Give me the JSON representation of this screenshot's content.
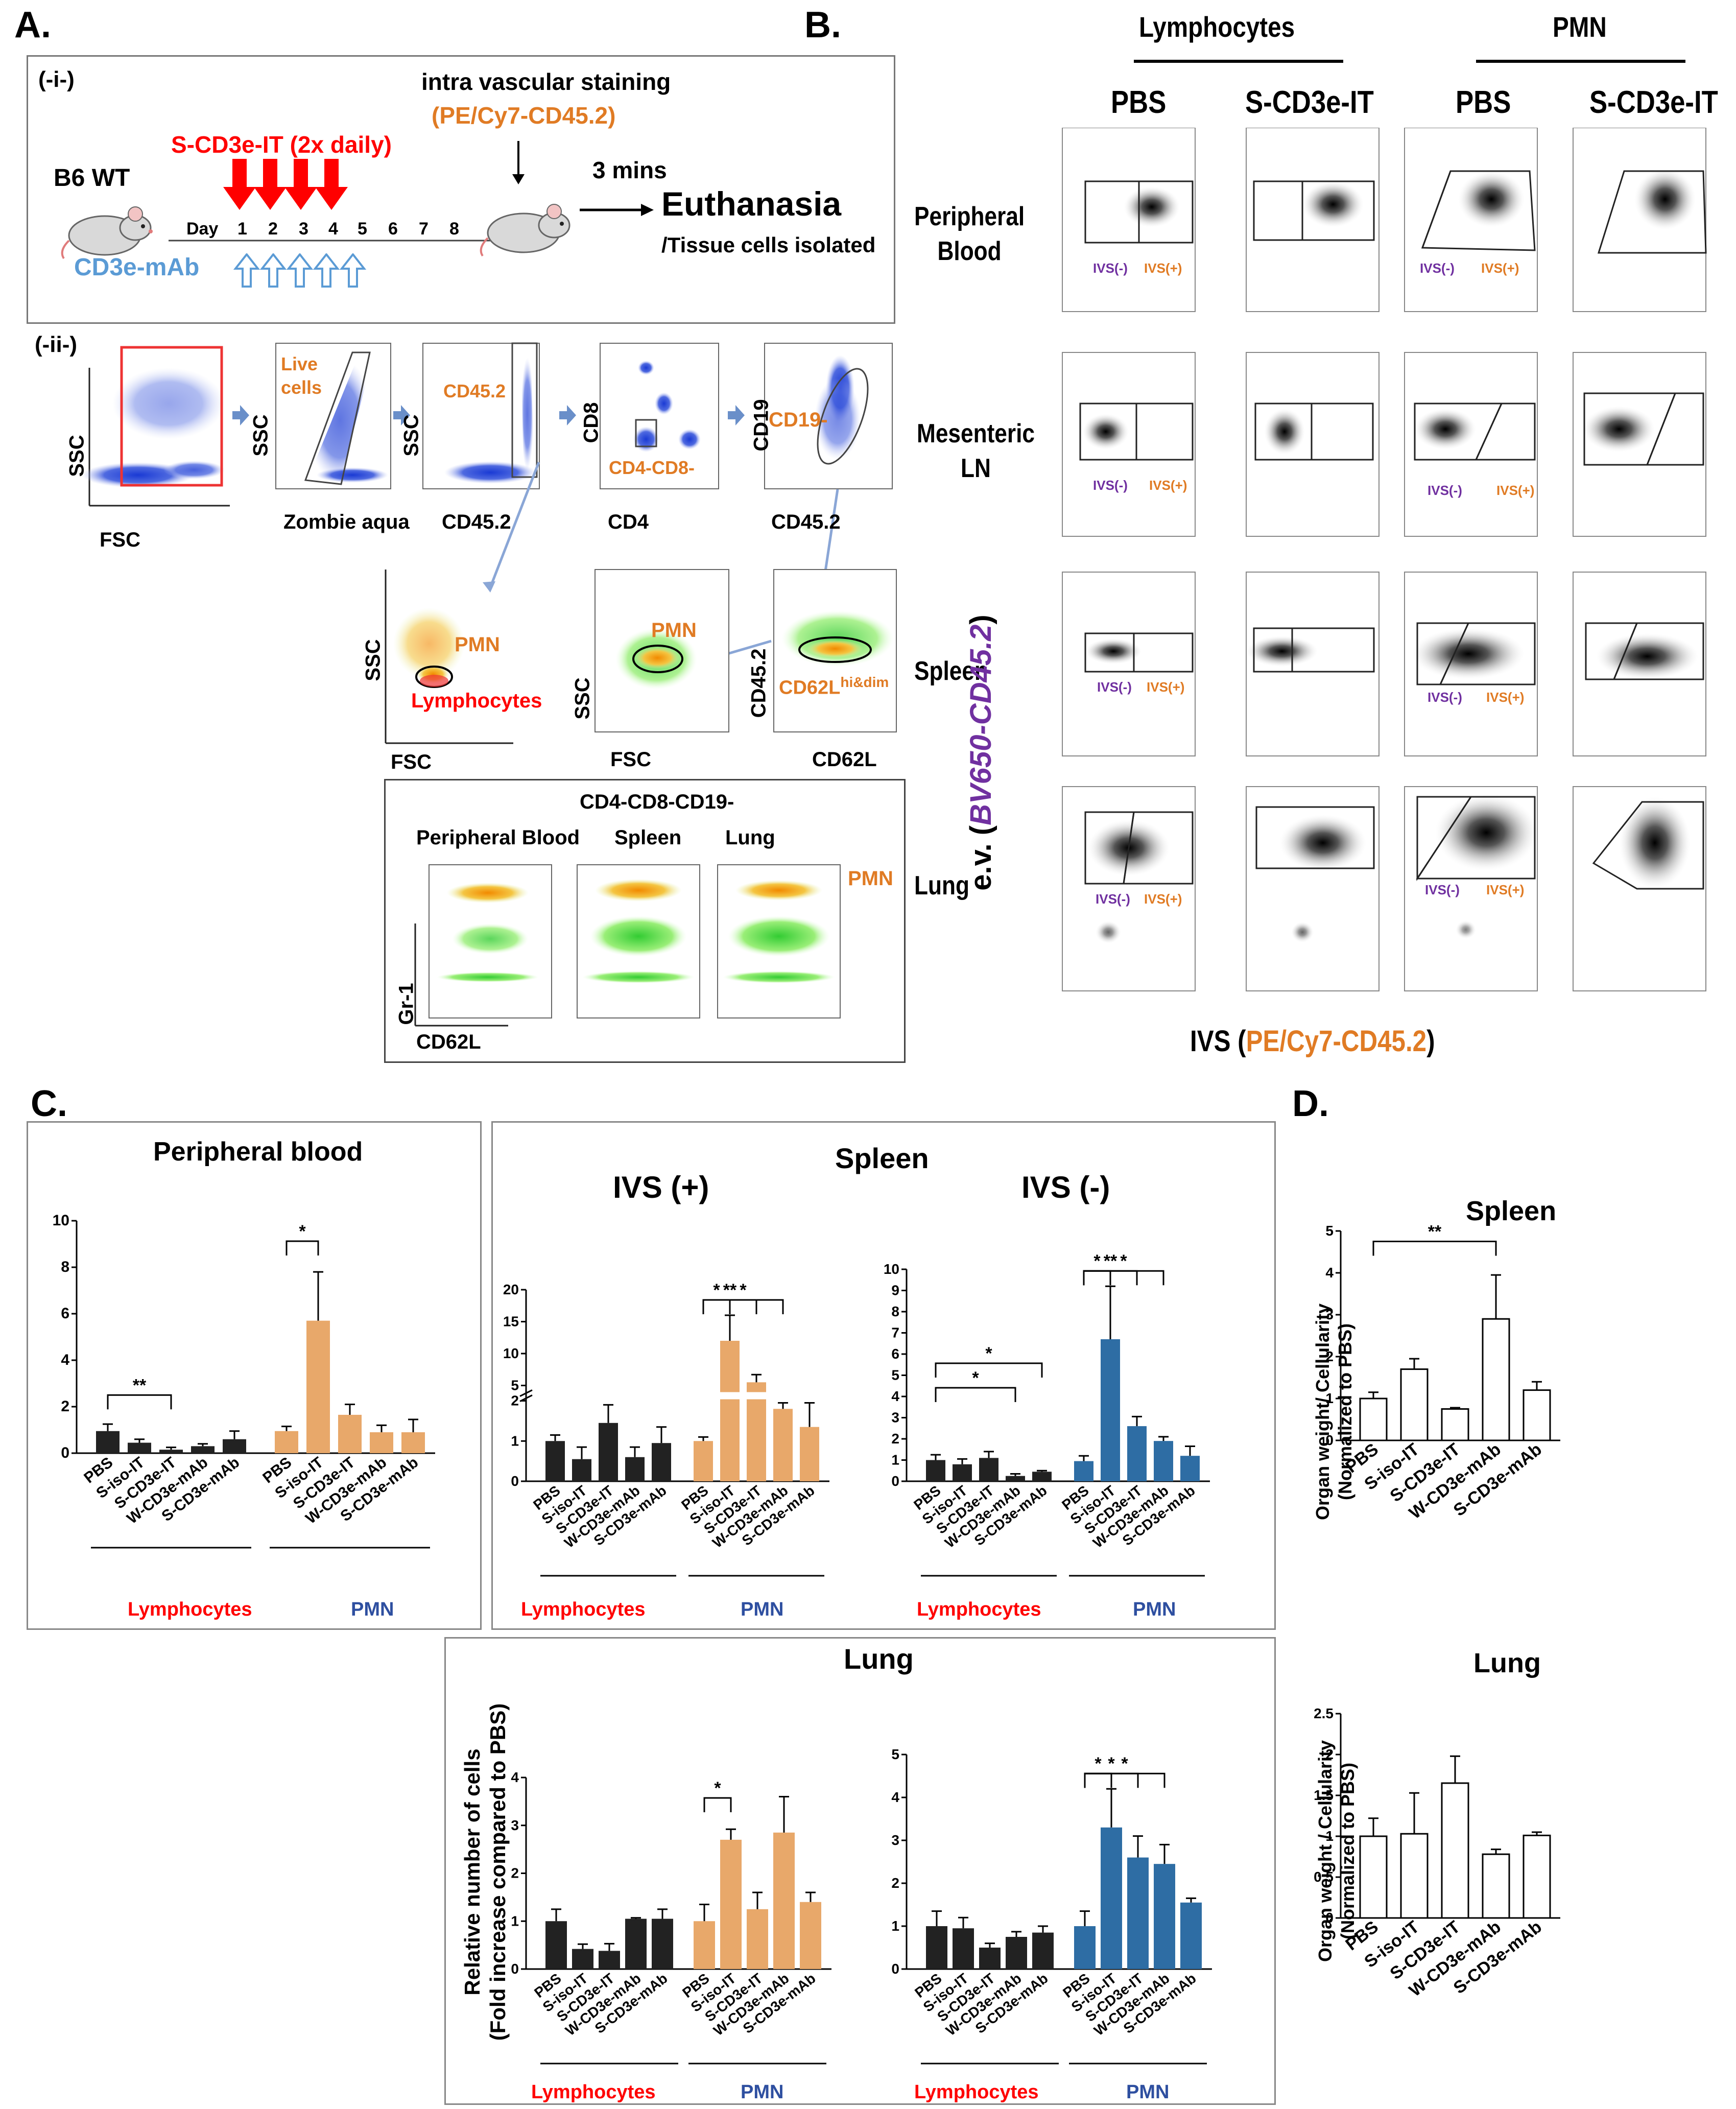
{
  "panels": {
    "A": "A.",
    "B": "B.",
    "C": "C.",
    "D": "D."
  },
  "colors": {
    "red": "#ff0000",
    "orange": "#e07b24",
    "blue": "#5b9bd5",
    "purple": "#7030a0",
    "pmn_bar": "#e8a86a",
    "dark_bar": "#222222",
    "navy_bar": "#2e6da4"
  },
  "panelA": {
    "sub_i": "(-i-)",
    "sub_ii": "(-ii-)",
    "mouse_label": "B6 WT",
    "treatment": "S-CD3e-IT (2x daily)",
    "day_label": "Day",
    "days": [
      "1",
      "2",
      "3",
      "4",
      "5",
      "6",
      "7",
      "8"
    ],
    "mab": "CD3e-mAb",
    "ivs_title": "intra vascular staining",
    "ivs_reagent": "(PE/Cy7-CD45.2)",
    "mins": "3 mins",
    "euthanasia": "Euthanasia",
    "isolated": "/Tissue cells isolated",
    "gating": {
      "p1": {
        "y": "SSC",
        "x": "FSC"
      },
      "p2": {
        "y": "SSC",
        "x": "Zombie aqua",
        "gate": "Live\ncells"
      },
      "p3": {
        "y": "SSC",
        "x": "CD45.2",
        "gate": "CD45.2"
      },
      "p4": {
        "y": "CD8",
        "x": "CD4",
        "gate": "CD4-CD8-"
      },
      "p5": {
        "y": "CD19",
        "x": "CD45.2",
        "gate": "CD19-"
      },
      "p6": {
        "y": "SSC",
        "x": "FSC",
        "gate1": "PMN",
        "gate2": "Lymphocytes"
      },
      "p7": {
        "y": "SSC",
        "x": "FSC",
        "gate": "PMN"
      },
      "p8": {
        "y": "CD45.2",
        "x": "CD62L",
        "gate": "CD62L",
        "gate_sup": "hi&dim"
      }
    },
    "bottom_box": {
      "title": "CD4-CD8-CD19-",
      "cols": [
        "Peripheral Blood",
        "Spleen",
        "Lung"
      ],
      "pmn": "PMN",
      "y": "Gr-1",
      "x": "CD62L"
    }
  },
  "panelB": {
    "groups": [
      "Lymphocytes",
      "PMN"
    ],
    "cols": [
      "PBS",
      "S-CD3e-IT",
      "PBS",
      "S-CD3e-IT"
    ],
    "rows": [
      "Peripheral\nBlood",
      "Mesenteric\nLN",
      "Spleen",
      "Lung"
    ],
    "ivs_neg": "IVS(-)",
    "ivs_pos": "IVS(+)",
    "y_axis_prefix": "e.v. (",
    "y_axis_colored": "BV650-CD45.2",
    "y_axis_suffix": ")",
    "x_axis_prefix": "IVS (",
    "x_axis_colored": "PE/Cy7-CD45.2",
    "x_axis_suffix": ")"
  },
  "panelC": {
    "pb_title": "Peripheral blood",
    "spleen_title": "Spleen",
    "ivs_pos_title": "IVS (+)",
    "ivs_neg_title": "IVS (-)",
    "lung_title": "Lung",
    "y_label_1": "Relative number of cells",
    "y_label_2": "(Fold increase compared to  PBS)",
    "group_lymph": "Lymphocytes",
    "group_pmn": "PMN"
  },
  "panelD": {
    "spleen_title": "Spleen",
    "lung_title": "Lung",
    "y1_a": "Organ weight/ Cellularity",
    "y1_b": "(Normalized to PBS)",
    "y2_a": "Organ weight / Cellularity",
    "y2_b": "(Normalized to PBS)"
  },
  "chart_data": [
    {
      "id": "C_peripheral_blood",
      "type": "bar",
      "title": "Peripheral blood",
      "categories": [
        "PBS",
        "S-iso-IT",
        "S-CD3e-IT",
        "W-CD3e-mAb",
        "S-CD3e-mAb",
        "PBS",
        "S-iso-IT",
        "S-CD3e-IT",
        "W-CD3e-mAb",
        "S-CD3e-mAb"
      ],
      "groups": [
        "Lymphocytes",
        "Lymphocytes",
        "Lymphocytes",
        "Lymphocytes",
        "Lymphocytes",
        "PMN",
        "PMN",
        "PMN",
        "PMN",
        "PMN"
      ],
      "values": [
        0.95,
        0.45,
        0.15,
        0.3,
        0.6,
        0.95,
        5.7,
        1.65,
        0.9,
        0.9
      ],
      "errors": [
        0.3,
        0.15,
        0.1,
        0.1,
        0.35,
        0.2,
        2.1,
        0.45,
        0.3,
        0.55
      ],
      "ylim": [
        0,
        10
      ],
      "yticks": [
        0,
        2,
        4,
        6,
        8,
        10
      ],
      "significance": [
        {
          "from": 0,
          "to": 2,
          "label": "**"
        },
        {
          "from": 5,
          "to": 6,
          "label": "*"
        }
      ]
    },
    {
      "id": "C_spleen_ivs_pos",
      "type": "bar",
      "title": "IVS (+)",
      "categories": [
        "PBS",
        "S-iso-IT",
        "S-CD3e-IT",
        "W-CD3e-mAb",
        "S-CD3e-mAb",
        "PBS",
        "S-iso-IT",
        "S-CD3e-IT",
        "W-CD3e-mAb",
        "S-CD3e-mAb"
      ],
      "values": [
        1.0,
        0.55,
        1.45,
        0.6,
        0.95,
        1.0,
        12.0,
        5.5,
        1.8,
        1.35
      ],
      "errors": [
        0.15,
        0.3,
        0.45,
        0.25,
        0.4,
        0.1,
        4.0,
        1.2,
        0.15,
        0.6
      ],
      "ylim": [
        0,
        20
      ],
      "yticks": [
        0,
        1,
        2,
        5,
        10,
        15,
        20
      ],
      "axis_break": [
        2,
        5
      ],
      "significance": [
        {
          "from": 5,
          "to": 6,
          "label": "*"
        },
        {
          "from": 5,
          "to": 7,
          "label": "**"
        },
        {
          "from": 5,
          "to": 8,
          "label": "*"
        }
      ]
    },
    {
      "id": "C_spleen_ivs_neg",
      "type": "bar",
      "title": "IVS (-)",
      "categories": [
        "PBS",
        "S-iso-IT",
        "S-CD3e-IT",
        "W-CD3e-mAb",
        "S-CD3e-mAb",
        "PBS",
        "S-iso-IT",
        "S-CD3e-IT",
        "W-CD3e-mAb",
        "S-CD3e-mAb"
      ],
      "values": [
        1.0,
        0.8,
        1.1,
        0.25,
        0.45,
        0.95,
        6.7,
        2.6,
        1.9,
        1.2
      ],
      "errors": [
        0.25,
        0.25,
        0.3,
        0.1,
        0.05,
        0.25,
        2.5,
        0.45,
        0.2,
        0.45
      ],
      "ylim": [
        0,
        10
      ],
      "yticks": [
        0,
        1,
        2,
        3,
        4,
        5,
        6,
        7,
        8,
        9,
        10
      ],
      "significance": [
        {
          "from": 0,
          "to": 3,
          "label": "*"
        },
        {
          "from": 0,
          "to": 4,
          "label": "*"
        },
        {
          "from": 5,
          "to": 6,
          "label": "*"
        },
        {
          "from": 5,
          "to": 7,
          "label": "**"
        },
        {
          "from": 5,
          "to": 8,
          "label": "*"
        }
      ]
    },
    {
      "id": "C_lung_left",
      "type": "bar",
      "title": "Lung",
      "categories": [
        "PBS",
        "S-iso-IT",
        "S-CD3e-IT",
        "W-CD3e-mAb",
        "S-CD3e-mAb",
        "PBS",
        "S-iso-IT",
        "S-CD3e-IT",
        "W-CD3e-mAb",
        "S-CD3e-mAb"
      ],
      "values": [
        1.0,
        0.42,
        0.38,
        1.05,
        1.05,
        1.0,
        2.7,
        1.25,
        2.85,
        1.4
      ],
      "errors": [
        0.25,
        0.1,
        0.15,
        0.02,
        0.2,
        0.35,
        0.22,
        0.35,
        0.75,
        0.2
      ],
      "ylim": [
        0,
        4
      ],
      "yticks": [
        0,
        1,
        2,
        3,
        4
      ],
      "significance": [
        {
          "from": 5,
          "to": 6,
          "label": "*"
        }
      ]
    },
    {
      "id": "C_lung_right",
      "type": "bar",
      "categories": [
        "PBS",
        "S-iso-IT",
        "S-CD3e-IT",
        "W-CD3e-mAb",
        "S-CD3e-mAb",
        "PBS",
        "S-iso-IT",
        "S-CD3e-IT",
        "W-CD3e-mAb",
        "S-CD3e-mAb"
      ],
      "values": [
        1.0,
        0.95,
        0.5,
        0.75,
        0.85,
        1.0,
        3.3,
        2.6,
        2.45,
        1.55
      ],
      "errors": [
        0.35,
        0.25,
        0.1,
        0.12,
        0.15,
        0.35,
        0.9,
        0.5,
        0.45,
        0.1
      ],
      "ylim": [
        0,
        5
      ],
      "yticks": [
        0,
        1,
        2,
        3,
        4,
        5
      ],
      "significance": [
        {
          "from": 5,
          "to": 6,
          "label": "*"
        },
        {
          "from": 5,
          "to": 7,
          "label": "*"
        },
        {
          "from": 5,
          "to": 8,
          "label": "*"
        }
      ]
    },
    {
      "id": "D_spleen",
      "type": "bar",
      "title": "Spleen",
      "categories": [
        "PBS",
        "S-iso-IT",
        "S-CD3e-IT",
        "W-CD3e-mAb",
        "S-CD3e-mAb"
      ],
      "values": [
        1.0,
        1.7,
        0.75,
        2.9,
        1.2
      ],
      "errors": [
        0.15,
        0.25,
        0.03,
        1.05,
        0.2
      ],
      "ylim": [
        0,
        5
      ],
      "yticks": [
        0,
        1,
        2,
        3,
        4,
        5
      ],
      "significance": [
        {
          "from": 0,
          "to": 3,
          "label": "**"
        }
      ]
    },
    {
      "id": "D_lung",
      "type": "bar",
      "title": "Lung",
      "categories": [
        "PBS",
        "S-iso-IT",
        "S-CD3e-IT",
        "W-CD3e-mAb",
        "S-CD3e-mAb"
      ],
      "values": [
        1.0,
        1.03,
        1.65,
        0.78,
        1.01
      ],
      "errors": [
        0.22,
        0.5,
        0.33,
        0.06,
        0.04
      ],
      "ylim": [
        0,
        2.5
      ],
      "yticks": [
        0.0,
        0.5,
        1.0,
        1.5,
        2.0,
        2.5
      ],
      "significance": []
    }
  ]
}
